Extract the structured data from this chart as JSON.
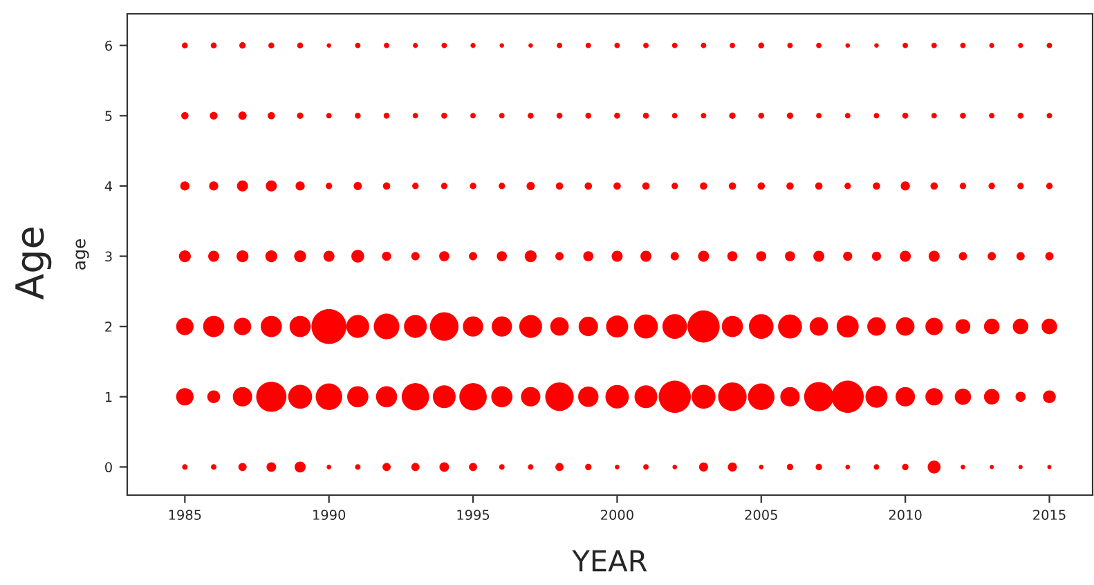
{
  "chart_data": {
    "type": "bubble",
    "xlabel": "YEAR",
    "ylabel": "age",
    "annotations": [
      "Age"
    ],
    "x": [
      1985,
      1986,
      1987,
      1988,
      1989,
      1990,
      1991,
      1992,
      1993,
      1994,
      1995,
      1996,
      1997,
      1998,
      1999,
      2000,
      2001,
      2002,
      2003,
      2004,
      2005,
      2006,
      2007,
      2008,
      2009,
      2010,
      2011,
      2012,
      2013,
      2014,
      2015
    ],
    "xlim": [
      1983,
      2016.5
    ],
    "ylim": [
      -0.4,
      6.45
    ],
    "xticks": [
      1985,
      1990,
      1995,
      2000,
      2005,
      2010,
      2015
    ],
    "yticks": [
      0,
      1,
      2,
      3,
      4,
      5,
      6
    ],
    "grid": false,
    "legend": false,
    "series": [
      {
        "color": "#ff0000",
        "values": [
          0,
          0,
          0,
          0,
          0,
          0,
          0,
          0,
          0,
          0,
          0,
          0,
          0,
          0,
          0,
          0,
          0,
          0,
          0,
          0,
          0,
          0,
          0,
          0,
          0,
          0,
          0,
          0,
          0,
          0,
          0
        ],
        "sizes": [
          0.025,
          0.025,
          0.056,
          0.076,
          0.1,
          0.017,
          0.025,
          0.056,
          0.056,
          0.076,
          0.056,
          0.025,
          0.025,
          0.056,
          0.034,
          0.017,
          0.025,
          0.017,
          0.069,
          0.069,
          0.017,
          0.034,
          0.034,
          0.017,
          0.025,
          0.034,
          0.136,
          0.017,
          0.014,
          0.014,
          0.014
        ]
      },
      {
        "color": "#ff0000",
        "values": [
          1,
          1,
          1,
          1,
          1,
          1,
          1,
          1,
          1,
          1,
          1,
          1,
          1,
          1,
          1,
          1,
          1,
          1,
          1,
          1,
          1,
          1,
          1,
          1,
          1,
          1,
          1,
          1,
          1,
          1,
          1
        ],
        "sizes": [
          0.25,
          0.136,
          0.31,
          0.75,
          0.47,
          0.58,
          0.37,
          0.37,
          0.62,
          0.43,
          0.62,
          0.37,
          0.31,
          0.67,
          0.34,
          0.45,
          0.43,
          0.85,
          0.47,
          0.67,
          0.58,
          0.31,
          0.71,
          0.85,
          0.4,
          0.31,
          0.25,
          0.22,
          0.2,
          0.084,
          0.136
        ]
      },
      {
        "color": "#ff0000",
        "values": [
          2,
          2,
          2,
          2,
          2,
          2,
          2,
          2,
          2,
          2,
          2,
          2,
          2,
          2,
          2,
          2,
          2,
          2,
          2,
          2,
          2,
          2,
          2,
          2,
          2,
          2,
          2,
          2,
          2,
          2,
          2
        ],
        "sizes": [
          0.25,
          0.37,
          0.25,
          0.37,
          0.37,
          1,
          0.43,
          0.54,
          0.43,
          0.67,
          0.34,
          0.34,
          0.43,
          0.28,
          0.31,
          0.4,
          0.47,
          0.5,
          0.85,
          0.37,
          0.5,
          0.47,
          0.28,
          0.4,
          0.28,
          0.28,
          0.25,
          0.18,
          0.2,
          0.2,
          0.2
        ]
      },
      {
        "color": "#ff0000",
        "values": [
          3,
          3,
          3,
          3,
          3,
          3,
          3,
          3,
          3,
          3,
          3,
          3,
          3,
          3,
          3,
          3,
          3,
          3,
          3,
          3,
          3,
          3,
          3,
          3,
          3,
          3,
          3,
          3,
          3,
          3,
          3
        ],
        "sizes": [
          0.117,
          0.1,
          0.117,
          0.117,
          0.117,
          0.1,
          0.136,
          0.069,
          0.056,
          0.084,
          0.056,
          0.084,
          0.117,
          0.056,
          0.084,
          0.1,
          0.1,
          0.056,
          0.1,
          0.084,
          0.084,
          0.084,
          0.1,
          0.069,
          0.069,
          0.1,
          0.1,
          0.056,
          0.056,
          0.056,
          0.056
        ]
      },
      {
        "color": "#ff0000",
        "values": [
          4,
          4,
          4,
          4,
          4,
          4,
          4,
          4,
          4,
          4,
          4,
          4,
          4,
          4,
          4,
          4,
          4,
          4,
          4,
          4,
          4,
          4,
          4,
          4,
          4,
          4,
          4,
          4,
          4,
          4,
          4
        ],
        "sizes": [
          0.069,
          0.069,
          0.1,
          0.1,
          0.069,
          0.034,
          0.056,
          0.044,
          0.034,
          0.034,
          0.034,
          0.034,
          0.056,
          0.044,
          0.044,
          0.044,
          0.044,
          0.034,
          0.044,
          0.044,
          0.044,
          0.044,
          0.044,
          0.034,
          0.044,
          0.069,
          0.044,
          0.034,
          0.034,
          0.034,
          0.034
        ]
      },
      {
        "color": "#ff0000",
        "values": [
          5,
          5,
          5,
          5,
          5,
          5,
          5,
          5,
          5,
          5,
          5,
          5,
          5,
          5,
          5,
          5,
          5,
          5,
          5,
          5,
          5,
          5,
          5,
          5,
          5,
          5,
          5,
          5,
          5,
          5,
          5
        ],
        "sizes": [
          0.044,
          0.05,
          0.056,
          0.044,
          0.034,
          0.025,
          0.029,
          0.029,
          0.025,
          0.029,
          0.025,
          0.025,
          0.029,
          0.029,
          0.029,
          0.029,
          0.029,
          0.025,
          0.025,
          0.034,
          0.029,
          0.034,
          0.025,
          0.025,
          0.025,
          0.029,
          0.025,
          0.029,
          0.025,
          0.029,
          0.025
        ]
      },
      {
        "color": "#ff0000",
        "values": [
          6,
          6,
          6,
          6,
          6,
          6,
          6,
          6,
          6,
          6,
          6,
          6,
          6,
          6,
          6,
          6,
          6,
          6,
          6,
          6,
          6,
          6,
          6,
          6,
          6,
          6,
          6,
          6,
          6,
          6,
          6
        ],
        "sizes": [
          0.029,
          0.029,
          0.034,
          0.029,
          0.029,
          0.017,
          0.025,
          0.025,
          0.021,
          0.025,
          0.021,
          0.017,
          0.017,
          0.025,
          0.025,
          0.025,
          0.025,
          0.025,
          0.025,
          0.025,
          0.029,
          0.025,
          0.025,
          0.017,
          0.017,
          0.025,
          0.025,
          0.025,
          0.021,
          0.021,
          0.025
        ]
      }
    ]
  }
}
